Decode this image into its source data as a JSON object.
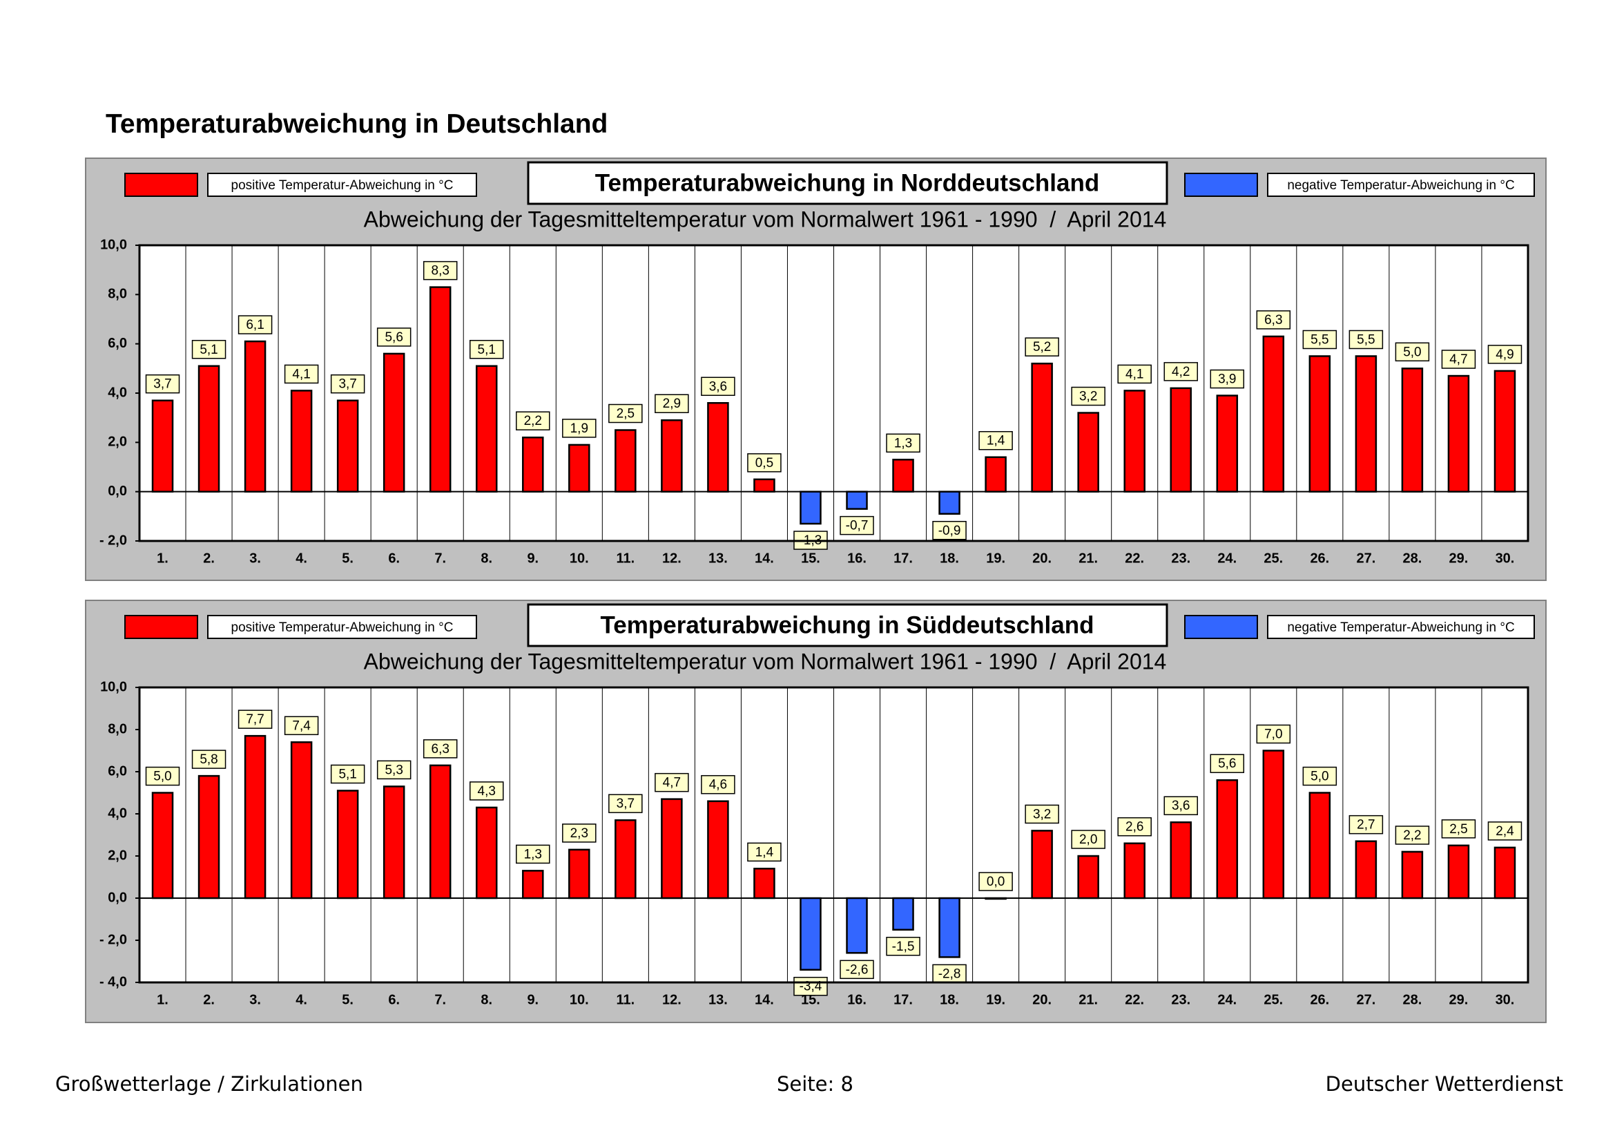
{
  "header": {
    "title": "Temperaturabweichung in Deutschland"
  },
  "chart_data": [
    {
      "type": "bar",
      "title": "Temperaturabweichung in Norddeutschland",
      "subtitle": "Abweichung der Tagesmitteltemperatur vom Normalwert 1961 - 1990  /  April 2014",
      "categories": [
        "1.",
        "2.",
        "3.",
        "4.",
        "5.",
        "6.",
        "7.",
        "8.",
        "9.",
        "10.",
        "11.",
        "12.",
        "13.",
        "14.",
        "15.",
        "16.",
        "17.",
        "18.",
        "19.",
        "20.",
        "21.",
        "22.",
        "23.",
        "24.",
        "25.",
        "26.",
        "27.",
        "28.",
        "29.",
        "30."
      ],
      "series": [
        {
          "name": "positive Temperatur-Abweichung in °C",
          "color": "#ff0000",
          "values": [
            3.7,
            5.1,
            6.1,
            4.1,
            3.7,
            5.6,
            8.3,
            5.1,
            2.2,
            1.9,
            2.5,
            2.9,
            3.6,
            0.5,
            null,
            null,
            1.3,
            null,
            1.4,
            5.2,
            3.2,
            4.1,
            4.2,
            3.9,
            6.3,
            5.5,
            5.5,
            5.0,
            4.7,
            4.9
          ],
          "value_labels": [
            "3,7",
            "5,1",
            "6,1",
            "4,1",
            "3,7",
            "5,6",
            "8,3",
            "5,1",
            "2,2",
            "1,9",
            "2,5",
            "2,9",
            "3,6",
            "0,5",
            null,
            null,
            "1,3",
            null,
            "1,4",
            "5,2",
            "3,2",
            "4,1",
            "4,2",
            "3,9",
            "6,3",
            "5,5",
            "5,5",
            "5,0",
            "4,7",
            "4,9"
          ]
        },
        {
          "name": "negative Temperatur-Abweichung in °C",
          "color": "#3366ff",
          "values": [
            null,
            null,
            null,
            null,
            null,
            null,
            null,
            null,
            null,
            null,
            null,
            null,
            null,
            null,
            -1.3,
            -0.7,
            null,
            -0.9,
            null,
            null,
            null,
            null,
            null,
            null,
            null,
            null,
            null,
            null,
            null,
            null
          ],
          "value_labels": [
            null,
            null,
            null,
            null,
            null,
            null,
            null,
            null,
            null,
            null,
            null,
            null,
            null,
            null,
            "-1,3",
            "-0,7",
            null,
            "-0,9",
            null,
            null,
            null,
            null,
            null,
            null,
            null,
            null,
            null,
            null,
            null,
            null
          ]
        }
      ],
      "ylim": [
        -2,
        10
      ],
      "yticks": [
        {
          "value": -2,
          "label": "- 2,0"
        },
        {
          "value": 0,
          "label": "0,0"
        },
        {
          "value": 2,
          "label": "2,0"
        },
        {
          "value": 4,
          "label": "4,0"
        },
        {
          "value": 6,
          "label": "6,0"
        },
        {
          "value": 8,
          "label": "8,0"
        },
        {
          "value": 10,
          "label": "10,0"
        }
      ]
    },
    {
      "type": "bar",
      "title": "Temperaturabweichung in Süddeutschland",
      "subtitle": "Abweichung der Tagesmitteltemperatur vom Normalwert 1961 - 1990  /  April 2014",
      "categories": [
        "1.",
        "2.",
        "3.",
        "4.",
        "5.",
        "6.",
        "7.",
        "8.",
        "9.",
        "10.",
        "11.",
        "12.",
        "13.",
        "14.",
        "15.",
        "16.",
        "17.",
        "18.",
        "19.",
        "20.",
        "21.",
        "22.",
        "23.",
        "24.",
        "25.",
        "26.",
        "27.",
        "28.",
        "29.",
        "30."
      ],
      "series": [
        {
          "name": "positive Temperatur-Abweichung in °C",
          "color": "#ff0000",
          "values": [
            5.0,
            5.8,
            7.7,
            7.4,
            5.1,
            5.3,
            6.3,
            4.3,
            1.3,
            2.3,
            3.7,
            4.7,
            4.6,
            1.4,
            null,
            null,
            null,
            null,
            0.0,
            3.2,
            2.0,
            2.6,
            3.6,
            5.6,
            7.0,
            5.0,
            2.7,
            2.2,
            2.5,
            2.4
          ],
          "value_labels": [
            "5,0",
            "5,8",
            "7,7",
            "7,4",
            "5,1",
            "5,3",
            "6,3",
            "4,3",
            "1,3",
            "2,3",
            "3,7",
            "4,7",
            "4,6",
            "1,4",
            null,
            null,
            null,
            null,
            "0,0",
            "3,2",
            "2,0",
            "2,6",
            "3,6",
            "5,6",
            "7,0",
            "5,0",
            "2,7",
            "2,2",
            "2,5",
            "2,4"
          ]
        },
        {
          "name": "negative Temperatur-Abweichung in °C",
          "color": "#3366ff",
          "values": [
            null,
            null,
            null,
            null,
            null,
            null,
            null,
            null,
            null,
            null,
            null,
            null,
            null,
            null,
            -3.4,
            -2.6,
            -1.5,
            -2.8,
            null,
            null,
            null,
            null,
            null,
            null,
            null,
            null,
            null,
            null,
            null,
            null
          ],
          "value_labels": [
            null,
            null,
            null,
            null,
            null,
            null,
            null,
            null,
            null,
            null,
            null,
            null,
            null,
            null,
            "-3,4",
            "-2,6",
            "-1,5",
            "-2,8",
            null,
            null,
            null,
            null,
            null,
            null,
            null,
            null,
            null,
            null,
            null,
            null
          ]
        }
      ],
      "ylim": [
        -4,
        10
      ],
      "yticks": [
        {
          "value": -4,
          "label": "- 4,0"
        },
        {
          "value": -2,
          "label": "- 2,0"
        },
        {
          "value": 0,
          "label": "0,0"
        },
        {
          "value": 2,
          "label": "2,0"
        },
        {
          "value": 4,
          "label": "4,0"
        },
        {
          "value": 6,
          "label": "6,0"
        },
        {
          "value": 8,
          "label": "8,0"
        },
        {
          "value": 10,
          "label": "10,0"
        }
      ]
    }
  ],
  "footer": {
    "left": "Großwetterlage / Zirkulationen",
    "center": "Seite: 8",
    "right": "Deutscher Wetterdienst"
  }
}
